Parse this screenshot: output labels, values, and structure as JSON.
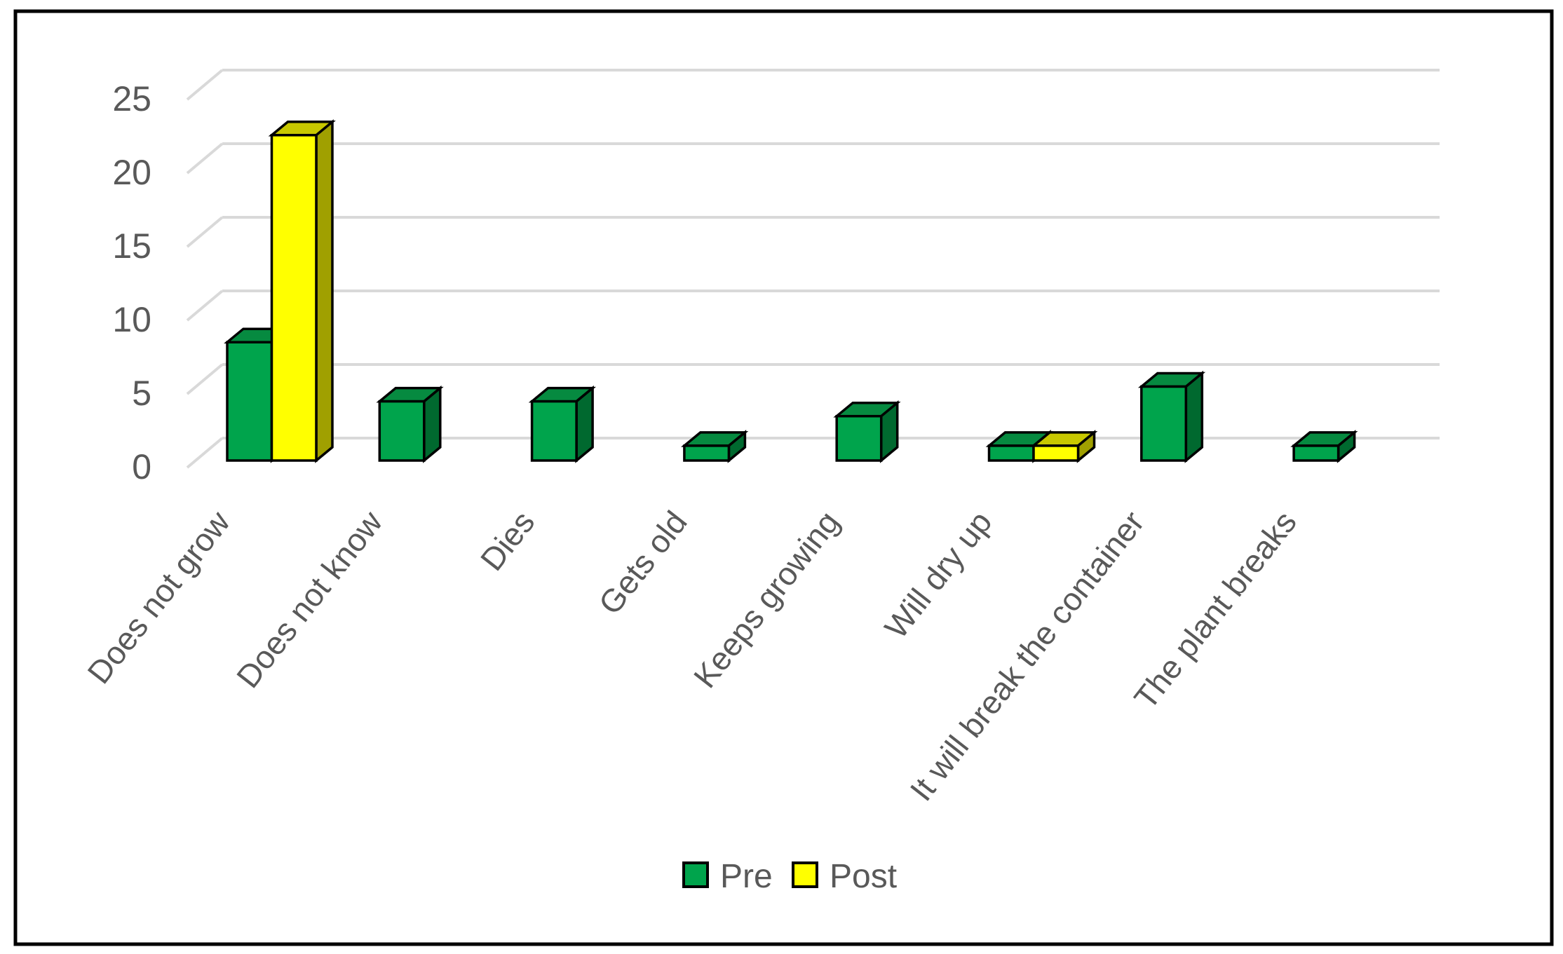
{
  "chart_data": {
    "type": "bar",
    "variant": "3d-clustered-column",
    "title": "",
    "xlabel": "",
    "ylabel": "",
    "categories": [
      "Does not grow",
      "Does not know",
      "Dies",
      "Gets old",
      "Keeps growing",
      "Will dry up",
      "It will break the container",
      "The plant breaks"
    ],
    "series": [
      {
        "name": "Pre",
        "values": [
          8,
          4,
          4,
          1,
          3,
          1,
          5,
          1
        ],
        "front_color": "#00A44C",
        "top_color": "#068A40",
        "side_color": "#00692F"
      },
      {
        "name": "Post",
        "values": [
          22,
          0,
          0,
          0,
          0,
          1,
          0,
          0
        ],
        "front_color": "#FFFF00",
        "top_color": "#C8C800",
        "side_color": "#A0A000"
      }
    ],
    "ylim": [
      0,
      25
    ],
    "ytick_step": 5,
    "yticks": [
      "0",
      "5",
      "10",
      "15",
      "20",
      "25"
    ],
    "grid": true,
    "legend_position": "bottom-center",
    "colors": {
      "axis_text": "#595959",
      "gridline": "#D9D9D9",
      "bar_outline": "#000000",
      "frame_border": "#000000",
      "background": "#FFFFFF"
    }
  }
}
